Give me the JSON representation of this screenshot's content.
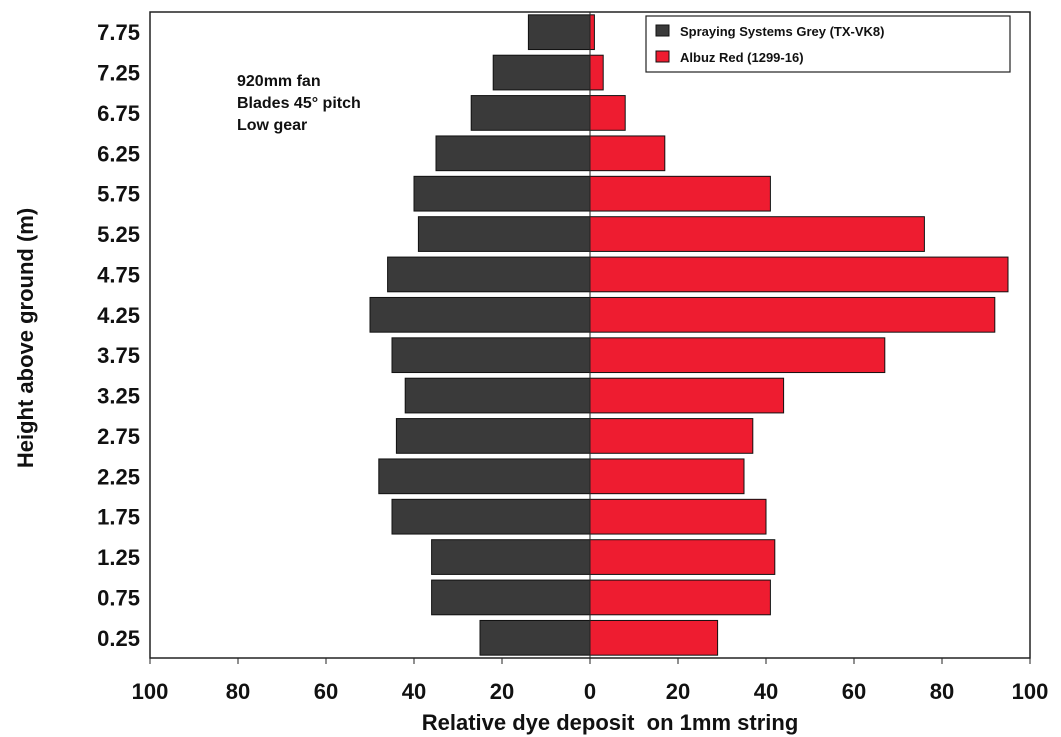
{
  "chart_data": {
    "type": "bar",
    "orientation": "horizontal-back-to-back",
    "xlabel": "Relative dye deposit  on 1mm string",
    "ylabel": "Height above ground (m)",
    "xticks": [
      "100",
      "80",
      "60",
      "40",
      "20",
      "0",
      "20",
      "40",
      "60",
      "80",
      "100"
    ],
    "xlim": [
      -100,
      100
    ],
    "grid": false,
    "legend_position": "top-right",
    "annotation": [
      "920mm fan",
      "Blades 45° pitch",
      "Low gear"
    ],
    "categories": [
      "0.25",
      "0.75",
      "1.25",
      "1.75",
      "2.25",
      "2.75",
      "3.25",
      "3.75",
      "4.25",
      "4.75",
      "5.25",
      "5.75",
      "6.25",
      "6.75",
      "7.25",
      "7.75"
    ],
    "series": [
      {
        "name": "Spraying Systems Grey (TX-VK8)",
        "side": "left",
        "color": "#3a3a3a",
        "values": [
          25,
          36,
          36,
          45,
          48,
          44,
          42,
          45,
          50,
          46,
          39,
          40,
          35,
          27,
          22,
          14
        ]
      },
      {
        "name": "Albuz Red (1299-16)",
        "side": "right",
        "color": "#ee1c30",
        "values": [
          29,
          41,
          42,
          40,
          35,
          37,
          44,
          67,
          92,
          95,
          76,
          41,
          17,
          8,
          3,
          1
        ]
      }
    ]
  }
}
